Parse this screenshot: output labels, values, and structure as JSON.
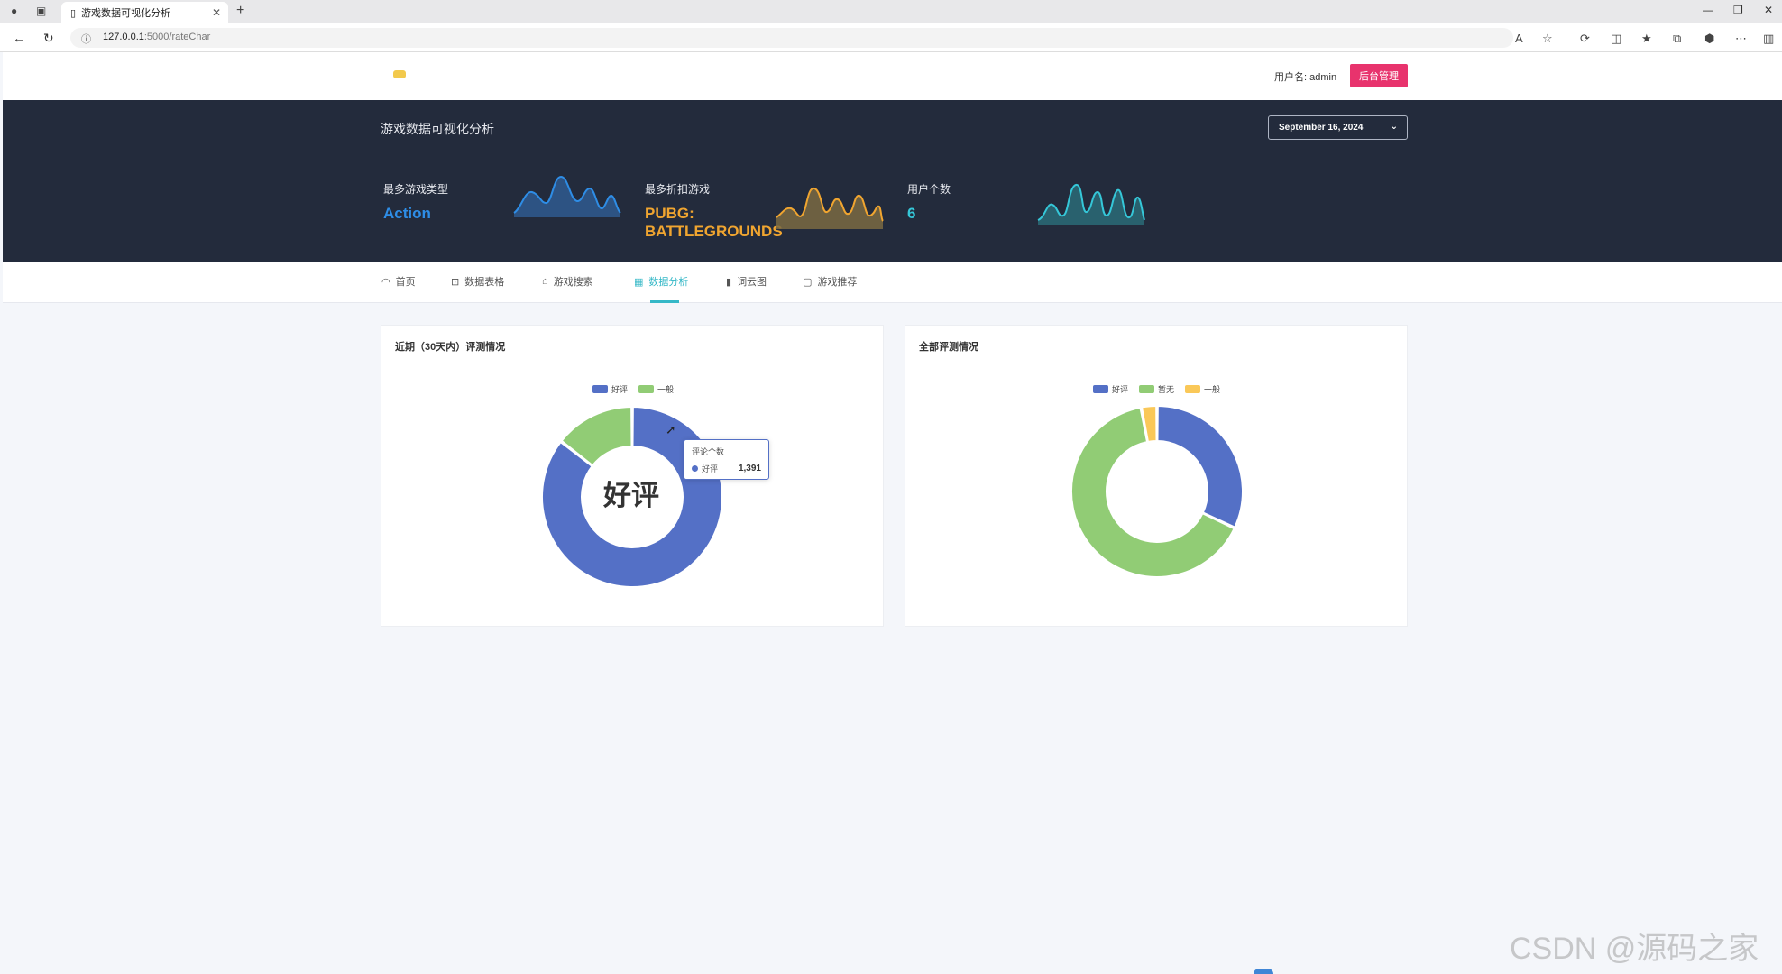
{
  "browser": {
    "tab_title": "游戏数据可视化分析",
    "url_host": "127.0.0.1",
    "url_path": ":5000/rateChar"
  },
  "header": {
    "username": "用户名: admin",
    "admin_button": "后台管理"
  },
  "hero": {
    "title": "游戏数据可视化分析",
    "date": "September 16, 2024",
    "stats": [
      {
        "label": "最多游戏类型",
        "value": "Action",
        "color": "#2e8de6"
      },
      {
        "label": "最多折扣游戏",
        "value": "PUBG: BATTLEGROUNDS",
        "color": "#f0a530"
      },
      {
        "label": "用户个数",
        "value": "6",
        "color": "#35c7d8"
      }
    ]
  },
  "nav": {
    "items": [
      {
        "label": "首页",
        "icon": "dashboard-icon"
      },
      {
        "label": "数据表格",
        "icon": "briefcase-icon"
      },
      {
        "label": "游戏搜索",
        "icon": "rocket-icon"
      },
      {
        "label": "数据分析",
        "icon": "grid-icon"
      },
      {
        "label": "词云图",
        "icon": "bar-chart-icon"
      },
      {
        "label": "游戏推荐",
        "icon": "calendar-icon"
      }
    ],
    "active_index": 3
  },
  "chart_data": [
    {
      "type": "pie",
      "title": "近期（30天内）评测情况",
      "legend": [
        "好评",
        "一般"
      ],
      "colors": [
        "#5470c6",
        "#91cc75"
      ],
      "series": [
        {
          "name": "评论个数",
          "values": [
            1391,
            235
          ]
        }
      ],
      "center_label": "好评",
      "tooltip": {
        "title": "评论个数",
        "name": "好评",
        "value": "1,391"
      }
    },
    {
      "type": "pie",
      "title": "全部评测情况",
      "legend": [
        "好评",
        "暂无",
        "一般"
      ],
      "colors": [
        "#5470c6",
        "#91cc75",
        "#fac858"
      ],
      "series": [
        {
          "values": [
            32,
            65,
            3
          ]
        }
      ]
    }
  ],
  "watermark": "CSDN @源码之家"
}
